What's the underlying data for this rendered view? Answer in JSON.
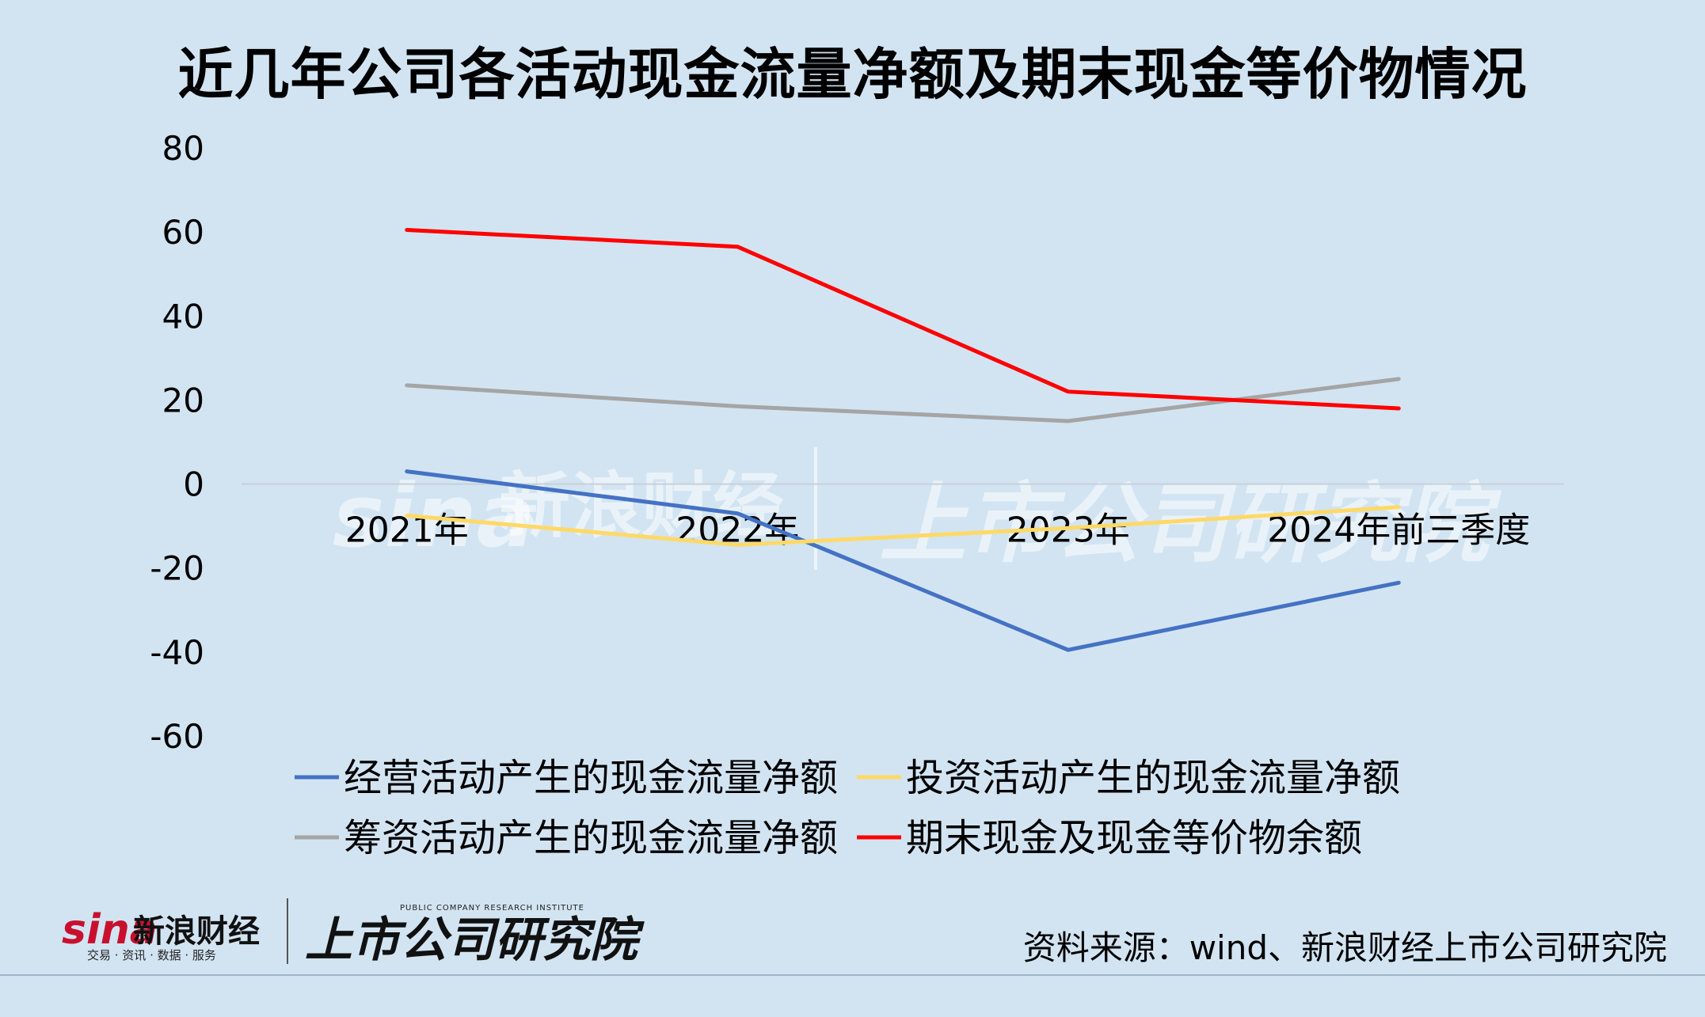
{
  "title": "近几年公司各活动现金流量净额及期末现金等价物情况",
  "chart_data": {
    "type": "line",
    "title": "近几年公司各活动现金流量净额及期末现金等价物情况",
    "categories": [
      "2021年",
      "2022年",
      "2023年",
      "2024年前三季度"
    ],
    "ylim": [
      -60,
      80
    ],
    "yticks": [
      "80",
      "60",
      "40",
      "20",
      "0",
      "-20",
      "-40",
      "-60"
    ],
    "grid": false,
    "legend_position": "bottom",
    "series": [
      {
        "name": "经营活动产生的现金流量净额",
        "color": "#4472c4",
        "values": [
          3,
          -7,
          -39.5,
          -23.5
        ]
      },
      {
        "name": "投资活动产生的现金流量净额",
        "color": "#ffd966",
        "values": [
          -7.5,
          -14.5,
          -10.5,
          -5.5
        ]
      },
      {
        "name": "筹资活动产生的现金流量净额",
        "color": "#a5a5a5",
        "values": [
          23.5,
          18.5,
          15,
          25
        ]
      },
      {
        "name": "期末现金及现金等价物余额",
        "color": "#ff0000",
        "values": [
          60.5,
          56.5,
          22,
          18
        ]
      }
    ]
  },
  "source": "资料来源：wind、新浪财经上市公司研究院",
  "logos": {
    "brand1_en": "sina",
    "brand1_cn": "新浪财经",
    "brand1_sub": "交易 · 资讯 · 数据 · 服务",
    "brand2_cn": "上市公司研究院",
    "brand2_en": "PUBLIC COMPANY RESEARCH INSTITUTE"
  }
}
